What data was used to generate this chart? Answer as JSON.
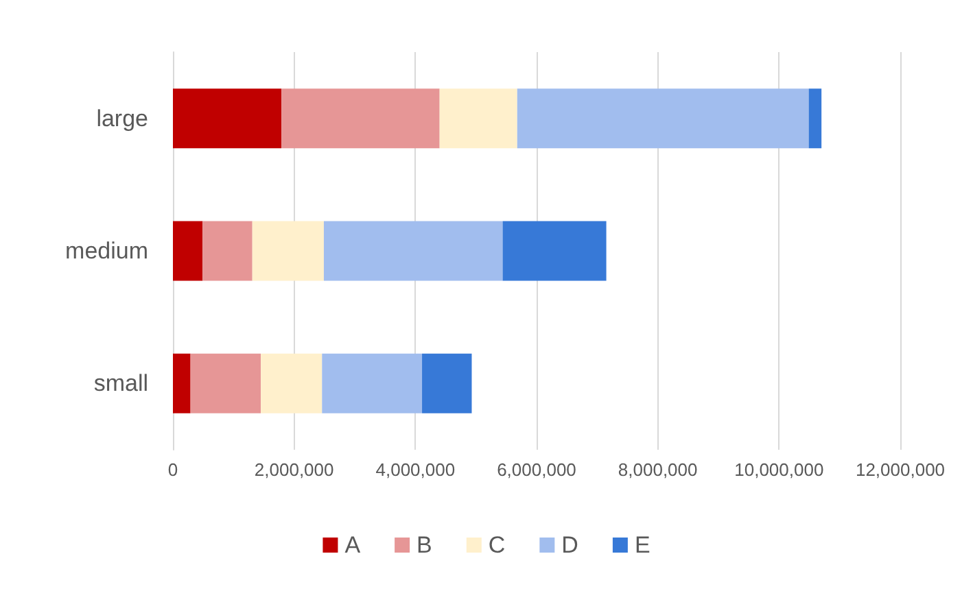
{
  "chart_data": {
    "type": "bar",
    "orientation": "horizontal",
    "stacked": true,
    "categories": [
      "large",
      "medium",
      "small"
    ],
    "series": [
      {
        "name": "A",
        "color": "#c00000",
        "values": [
          1790000,
          490000,
          290000
        ]
      },
      {
        "name": "B",
        "color": "#e69696",
        "values": [
          2610000,
          820000,
          1160000
        ]
      },
      {
        "name": "C",
        "color": "#fff0cc",
        "values": [
          1280000,
          1180000,
          1010000
        ]
      },
      {
        "name": "D",
        "color": "#a1bdee",
        "values": [
          4810000,
          2950000,
          1650000
        ]
      },
      {
        "name": "E",
        "color": "#3779d7",
        "values": [
          210000,
          1710000,
          820000
        ]
      }
    ],
    "xlim": [
      0,
      12000000
    ],
    "xticks": [
      0,
      {
        "value": 2000000,
        "label": "2,000,000"
      },
      {
        "value": 4000000,
        "label": "4,000,000"
      },
      {
        "value": 6000000,
        "label": "6,000,000"
      },
      {
        "value": 8000000,
        "label": "8,000,000"
      },
      {
        "value": 10000000,
        "label": "10,000,000"
      },
      {
        "value": 12000000,
        "label": "12,000,000"
      }
    ],
    "grid": "x",
    "legend": "bottom"
  }
}
